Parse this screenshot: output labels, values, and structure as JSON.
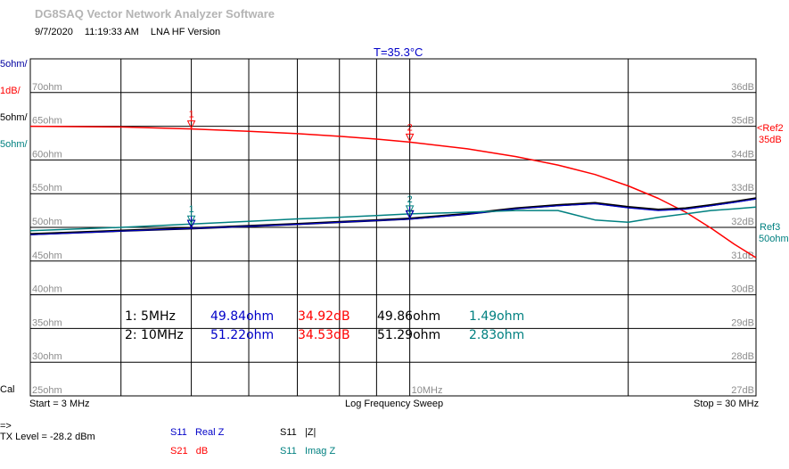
{
  "app": {
    "title": "DG8SAQ Vector Network Analyzer Software",
    "date": "9/7/2020",
    "time": "11:19:33 AM",
    "version": "LNA HF Version",
    "temperature": "T=35.3°C"
  },
  "left_scales": [
    {
      "label": "5ohm/",
      "color": "#0000a0"
    },
    {
      "label": "1dB/",
      "color": "#ff0000"
    },
    {
      "label": "5ohm/",
      "color": "#000000"
    },
    {
      "label": "5ohm/",
      "color": "#008080"
    }
  ],
  "cal_label": "Cal",
  "footer": {
    "start": "Start = 3 MHz",
    "sweep": "Log Frequency Sweep",
    "stop": "Stop = 30 MHz",
    "arrow": "=>",
    "tx_level": "TX Level = -28.2 dBm"
  },
  "legend": [
    {
      "param": "S11",
      "name": "Real Z",
      "color": "#0000c8"
    },
    {
      "param": "S11",
      "name": "|Z|",
      "color": "#000000"
    },
    {
      "param": "S21",
      "name": "dB",
      "color": "#ff0000"
    },
    {
      "param": "S11",
      "name": "Imag Z",
      "color": "#008080"
    }
  ],
  "right_refs": {
    "ref2_label": "<Ref2",
    "ref2_value": "35dB",
    "ref3_label": "Ref3",
    "ref3_value": "50ohm"
  },
  "marker_table": {
    "rows": [
      {
        "marker": "1:",
        "freq": "5MHz",
        "realz": "49.84ohm",
        "s21": "34.92dB",
        "absz": "49.86ohm",
        "imagz": "1.49ohm"
      },
      {
        "marker": "2:",
        "freq": "10MHz",
        "realz": "51.22ohm",
        "s21": "34.53dB",
        "absz": "51.29ohm",
        "imagz": "2.83ohm"
      }
    ]
  },
  "chart_data": {
    "type": "line",
    "xscale": "log",
    "xlim": [
      3,
      30
    ],
    "x_unit": "MHz",
    "x_tick_labels": [
      {
        "value": 10,
        "label": "10MHz"
      }
    ],
    "left_axis": {
      "ylim": [
        25,
        75
      ],
      "ticks": [
        25,
        30,
        35,
        40,
        45,
        50,
        55,
        60,
        65,
        70
      ],
      "tick_labels": [
        "25ohm",
        "30ohm",
        "35ohm",
        "40ohm",
        "45ohm",
        "50ohm",
        "55ohm",
        "60ohm",
        "65ohm",
        "70ohm"
      ]
    },
    "right_axis": {
      "ylim": [
        27,
        37
      ],
      "ticks": [
        27,
        28,
        29,
        30,
        31,
        32,
        33,
        34,
        35,
        36
      ],
      "tick_labels": [
        "27dB",
        "28dB",
        "29dB",
        "30dB",
        "31dB",
        "32dB",
        "33dB",
        "34dB",
        "35dB",
        "36dB"
      ]
    },
    "grid": true,
    "series": [
      {
        "name": "S21 dB",
        "axis": "right",
        "color": "#ff0000",
        "x": [
          3,
          4,
          5,
          6,
          7,
          8,
          9,
          10,
          12,
          14,
          16,
          18,
          20,
          22,
          24,
          26,
          28,
          30
        ],
        "y": [
          35.0,
          34.98,
          34.92,
          34.85,
          34.78,
          34.7,
          34.62,
          34.53,
          34.33,
          34.1,
          33.85,
          33.57,
          33.23,
          32.86,
          32.45,
          31.98,
          31.5,
          31.1
        ]
      },
      {
        "name": "S11 |Z|",
        "axis": "left",
        "color": "#000000",
        "x": [
          3,
          4,
          5,
          6,
          7,
          8,
          9,
          10,
          12,
          14,
          16,
          18,
          20,
          22,
          24,
          26,
          28,
          30
        ],
        "y": [
          49.0,
          49.5,
          49.86,
          50.2,
          50.5,
          50.8,
          51.05,
          51.29,
          52.0,
          52.8,
          53.3,
          53.6,
          53.0,
          52.6,
          52.8,
          53.3,
          53.8,
          54.3
        ]
      },
      {
        "name": "S11 Real Z",
        "axis": "left",
        "color": "#0000c8",
        "x": [
          3,
          4,
          5,
          6,
          7,
          8,
          9,
          10,
          12,
          14,
          16,
          18,
          20,
          22,
          24,
          26,
          28,
          30
        ],
        "y": [
          48.9,
          49.45,
          49.84,
          50.15,
          50.45,
          50.75,
          51.0,
          51.22,
          51.95,
          52.75,
          53.2,
          53.5,
          52.9,
          52.5,
          52.7,
          53.2,
          53.7,
          54.2
        ]
      },
      {
        "name": "S11 Imag Z",
        "axis": "right",
        "color": "#008080",
        "x": [
          3,
          4,
          5,
          6,
          7,
          8,
          9,
          10,
          12,
          14,
          16,
          18,
          20,
          22,
          24,
          26,
          28,
          30
        ],
        "y": [
          31.9,
          32.0,
          32.1,
          32.18,
          32.25,
          32.3,
          32.35,
          32.4,
          32.45,
          32.5,
          32.5,
          32.22,
          32.15,
          32.3,
          32.4,
          32.5,
          32.55,
          32.6
        ]
      }
    ],
    "markers": [
      {
        "label": "1",
        "x": 5
      },
      {
        "label": "2",
        "x": 10
      }
    ]
  }
}
